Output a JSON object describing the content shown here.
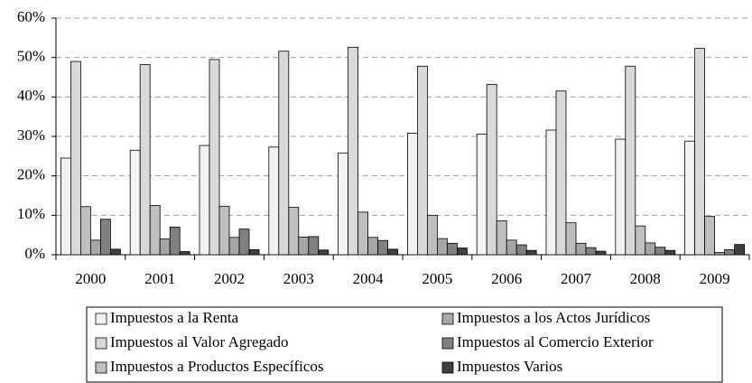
{
  "chart_data": {
    "type": "bar",
    "categories": [
      "2000",
      "2001",
      "2002",
      "2003",
      "2004",
      "2005",
      "2006",
      "2007",
      "2008",
      "2009"
    ],
    "series": [
      {
        "name": "Impuestos a la Renta",
        "color": "#f2f2f2",
        "values": [
          24.5,
          26.5,
          27.7,
          27.3,
          25.8,
          30.8,
          30.6,
          31.6,
          29.3,
          28.8
        ]
      },
      {
        "name": "Impuestos al Valor Agregado",
        "color": "#d9d9d9",
        "values": [
          49,
          48.2,
          49.5,
          51.6,
          52.6,
          47.8,
          43.2,
          41.5,
          47.8,
          52.3
        ]
      },
      {
        "name": "Impuestos  a Productos Específicos",
        "color": "#bfbfbf",
        "values": [
          12.2,
          12.5,
          12.3,
          12,
          10.8,
          10,
          8.6,
          8.1,
          7.3,
          9.7
        ]
      },
      {
        "name": "Impuestos a los Actos Jurídicos",
        "color": "#a6a6a6",
        "values": [
          3.7,
          4,
          4.4,
          4.5,
          4.4,
          4.1,
          3.7,
          2.9,
          3,
          0.6
        ]
      },
      {
        "name": "Impuestos al Comercio Exterior",
        "color": "#808080",
        "values": [
          9,
          7,
          6.5,
          4.6,
          3.6,
          2.9,
          2.5,
          1.8,
          1.9,
          1.3
        ]
      },
      {
        "name": "Impuestos Varios",
        "color": "#404040",
        "values": [
          1.4,
          0.8,
          1.3,
          1.2,
          1.4,
          1.7,
          1.1,
          0.9,
          1.1,
          2.6
        ]
      }
    ],
    "ylim": [
      0,
      60
    ],
    "yticks": [
      {
        "value": 0,
        "label": "0%"
      },
      {
        "value": 10,
        "label": "10%"
      },
      {
        "value": 20,
        "label": "20%"
      },
      {
        "value": 30,
        "label": "30%"
      },
      {
        "value": 40,
        "label": "40%"
      },
      {
        "value": 50,
        "label": "50%"
      },
      {
        "value": 60,
        "label": "60%"
      }
    ],
    "grid": true,
    "legend": "bottom"
  }
}
